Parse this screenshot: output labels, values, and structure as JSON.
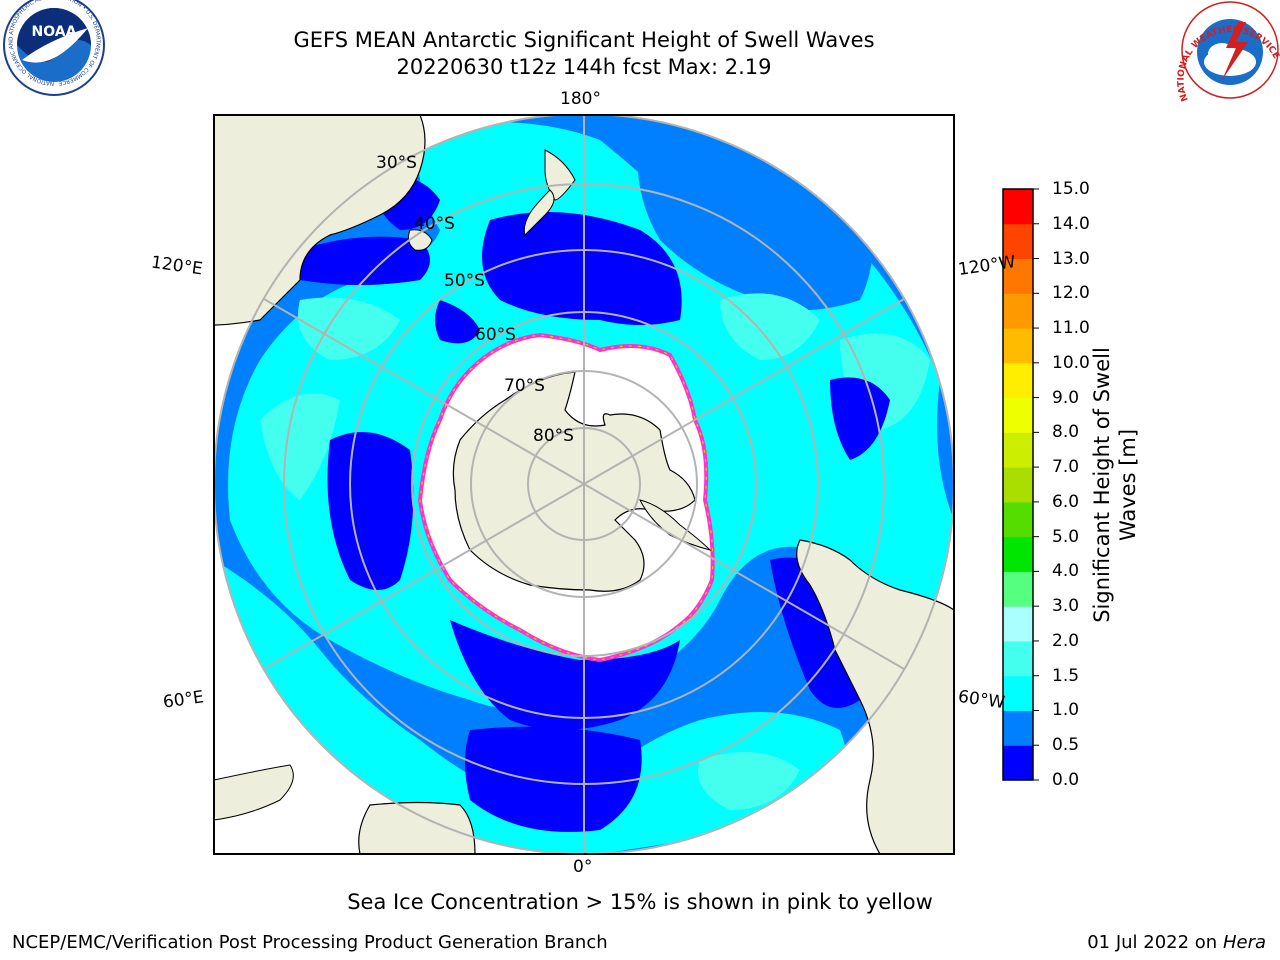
{
  "header": {
    "title_line1": "GEFS MEAN Antarctic Significant Height of Swell Waves",
    "title_line2": "20220630 t12z 144h fcst   Max: 2.19"
  },
  "logos": {
    "left": {
      "icon": "noaa-logo",
      "text": "NOAA",
      "ring_text": "NATIONAL OCEANIC AND ATMOSPHERIC ADMINISTRATION • U.S. DEPARTMENT OF COMMERCE"
    },
    "right": {
      "icon": "nws-logo",
      "ring_text": "NATIONAL WEATHER SERVICE"
    }
  },
  "map": {
    "projection": "south-polar-stereographic",
    "longitude_labels": {
      "top": "180°",
      "bottom": "0°",
      "upper_left": "120°E",
      "upper_right": "120°W",
      "lower_left": "60°E",
      "lower_right": "60°W"
    },
    "latitude_labels": [
      "30°S",
      "40°S",
      "50°S",
      "60°S",
      "70°S",
      "80°S"
    ],
    "colors": {
      "ocean_low": "#0000ff",
      "ocean_mid": "#0080ff",
      "ocean_high": "#00ffff",
      "land": "#eeeedc",
      "ice": "#ffffff",
      "ice_edge": "#ff33cc",
      "grid": "#b3b3b3"
    }
  },
  "colorbar": {
    "label_line1": "Significant Height of Swell",
    "label_line2": "Waves [m]",
    "ticks": [
      "0.0",
      "0.5",
      "1.0",
      "1.5",
      "2.0",
      "3.0",
      "4.0",
      "5.0",
      "6.0",
      "7.0",
      "8.0",
      "9.0",
      "10.0",
      "11.0",
      "12.0",
      "13.0",
      "14.0",
      "15.0"
    ],
    "colors": [
      "#0000ff",
      "#0080ff",
      "#00ffff",
      "#44ffee",
      "#aaffff",
      "#55ff7f",
      "#00e600",
      "#55dd00",
      "#aadd00",
      "#ccee00",
      "#eeff00",
      "#ffee00",
      "#ffbb00",
      "#ff9900",
      "#ff7700",
      "#ff4400",
      "#ff0000"
    ]
  },
  "footer": {
    "note": "Sea Ice Concentration > 15% is shown in pink to yellow",
    "credit_left": "NCEP/EMC/Verification Post Processing Product Generation Branch",
    "credit_right_prefix": "01 Jul 2022 on ",
    "credit_right_host": "Hera"
  }
}
